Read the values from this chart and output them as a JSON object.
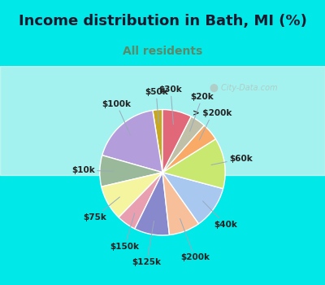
{
  "title": "Income distribution in Bath, MI (%)",
  "subtitle": "All residents",
  "title_color": "#1a1a2e",
  "subtitle_color": "#5a8a6a",
  "background_color": "#00e8e8",
  "chart_bg_top": "#e8f5f0",
  "chart_bg_bottom": "#c8e8d8",
  "watermark": "• City-Data.com",
  "labels": [
    "$50k",
    "$100k",
    "$10k",
    "$75k",
    "$150k",
    "$125k",
    "$200k",
    "$40k",
    "$60k",
    "> $200k",
    "$20k",
    "$30k"
  ],
  "values": [
    2.5,
    18.0,
    8.0,
    9.0,
    5.0,
    9.0,
    8.0,
    11.0,
    13.0,
    4.5,
    4.0,
    7.5
  ],
  "colors": [
    "#c8a820",
    "#b39ddb",
    "#9ab89a",
    "#f5f5a0",
    "#e8a0b0",
    "#8888cc",
    "#f8c09a",
    "#a8c8f0",
    "#c8e870",
    "#f8aa66",
    "#c0c0a8",
    "#e06878"
  ],
  "startangle": 90,
  "label_fontsize": 7.5,
  "title_fontsize": 13,
  "subtitle_fontsize": 10
}
